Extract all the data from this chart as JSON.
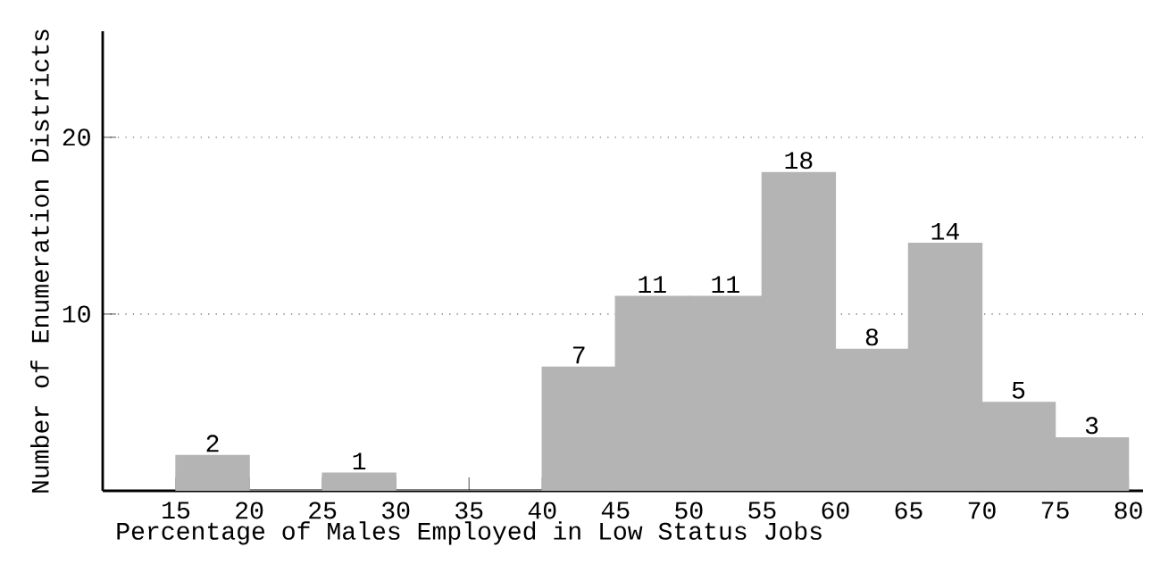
{
  "chart_data": {
    "type": "histogram",
    "xlabel": "Percentage of Males Employed in Low Status Jobs",
    "ylabel": "Number of Enumeration Districts",
    "bins": [
      15,
      20,
      25,
      30,
      35,
      40,
      45,
      50,
      55,
      60,
      65,
      70,
      75,
      80
    ],
    "values": [
      2,
      0,
      1,
      0,
      0,
      7,
      11,
      11,
      18,
      8,
      14,
      5,
      3
    ],
    "value_labels": [
      "2",
      null,
      "1",
      null,
      null,
      "7",
      "11",
      "11",
      "18",
      "8",
      "14",
      "5",
      "3"
    ],
    "color": "#b4b4b4",
    "xlim": [
      10,
      81
    ],
    "ylim": [
      0,
      26
    ],
    "xticks": [
      15,
      20,
      25,
      30,
      35,
      40,
      45,
      50,
      55,
      60,
      65,
      70,
      75,
      80
    ],
    "yticks": [
      10,
      20
    ],
    "grid": "y"
  }
}
